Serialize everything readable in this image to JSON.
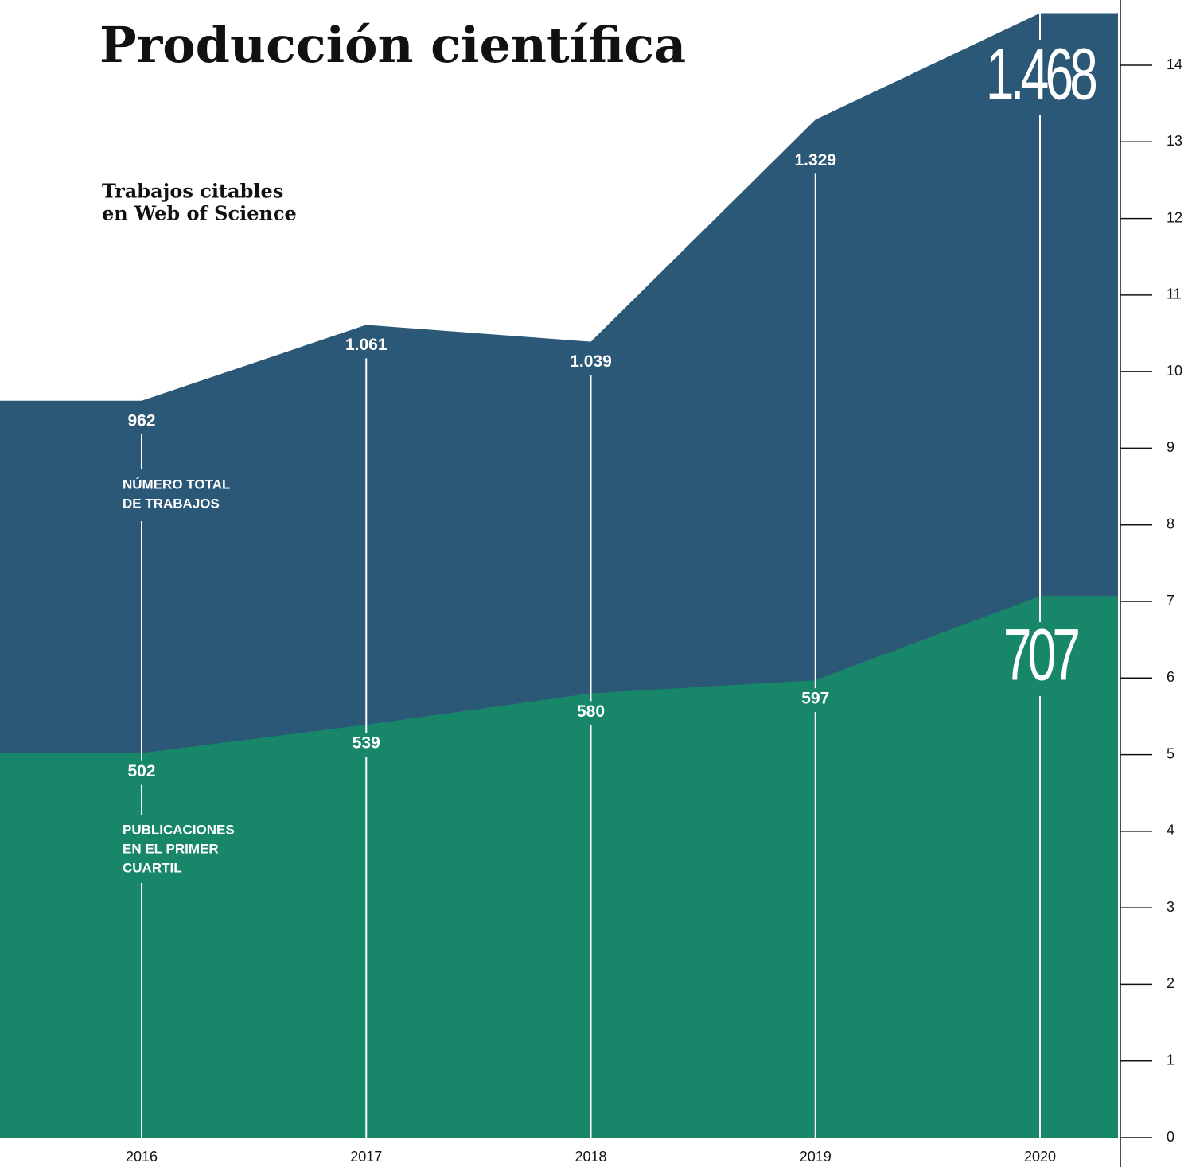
{
  "chart_data": {
    "type": "area",
    "title": "Producción científica",
    "subtitle": [
      "Trabajos citables",
      "en Web of Science"
    ],
    "categories": [
      "2016",
      "2017",
      "2018",
      "2019",
      "2020"
    ],
    "series": [
      {
        "name": [
          "NÚMERO TOTAL",
          "DE TRABAJOS"
        ],
        "color": "#2c5878",
        "values": [
          9.62,
          10.61,
          10.39,
          13.29,
          14.68
        ],
        "value_labels": [
          "962",
          "1.061",
          "1.039",
          "1.329",
          "1.468"
        ]
      },
      {
        "name": [
          "PUBLICACIONES",
          "EN EL PRIMER",
          "CUARTIL"
        ],
        "color": "#168a68",
        "values": [
          5.02,
          5.39,
          5.8,
          5.97,
          7.07
        ],
        "value_labels": [
          "502",
          "539",
          "580",
          "597",
          "707"
        ]
      }
    ],
    "ylim": [
      0,
      14
    ],
    "yticks": [
      0,
      1,
      2,
      3,
      4,
      5,
      6,
      7,
      8,
      9,
      10,
      11,
      12,
      13,
      14
    ]
  }
}
